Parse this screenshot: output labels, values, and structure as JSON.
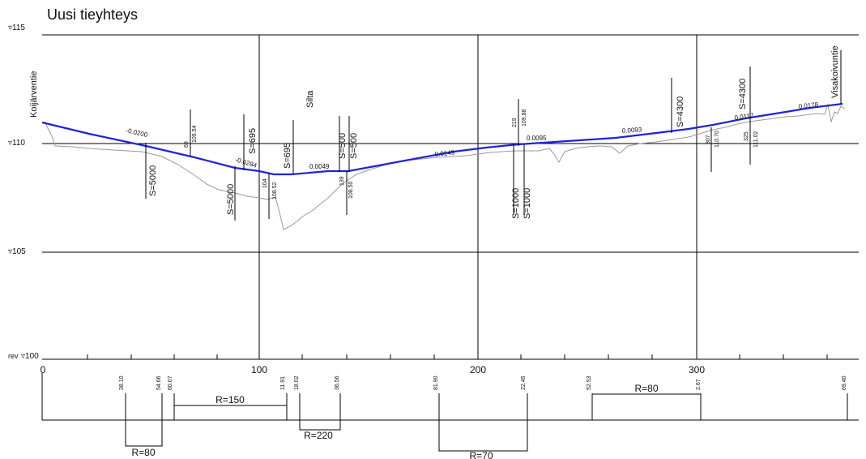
{
  "title": "Uusi tieyhteys",
  "colors": {
    "design_line": "#1f24d6",
    "ground_line": "#9a9a9a",
    "grid": "#000000"
  },
  "elevation_labels": [
    "▿115",
    "▿110",
    "▿105",
    "▿100"
  ],
  "elevation_corner_note": "rev",
  "station_labels": [
    "0",
    "100",
    "200",
    "300"
  ],
  "place_labels": [
    "Koijärventie",
    "Silta",
    "Visakoivuntie"
  ],
  "grades": [
    "-0.0200",
    "-0.0284",
    "0.0049",
    "0.0149",
    "0.0095",
    "0.0093",
    "0.0117",
    "0.0178"
  ],
  "vertical_curves": [
    "S=5000",
    "S=5000",
    "S=695",
    "S=695",
    "S=500",
    "S=500",
    "S=1000",
    "S=1000",
    "S=4300",
    "S=4300"
  ],
  "break_points": [
    {
      "chain": "68",
      "elev": "109.54"
    },
    {
      "chain": "104",
      "elev": "108.52"
    },
    {
      "chain": "139",
      "elev": "108.50"
    },
    {
      "chain": "219",
      "elev": "109.88"
    },
    {
      "chain": "307",
      "elev": "110.70"
    },
    {
      "chain": "325",
      "elev": "111.02"
    }
  ],
  "horizontal_stations": [
    "38.10",
    "54.66",
    "60.07",
    "11.91",
    "18.02",
    "36.56",
    "81.90",
    "22.45",
    "52.53",
    "2.67",
    "69.40"
  ],
  "horizontal_curves": [
    "R=80",
    "R=150",
    "R=220",
    "R=70",
    "R=80"
  ]
}
